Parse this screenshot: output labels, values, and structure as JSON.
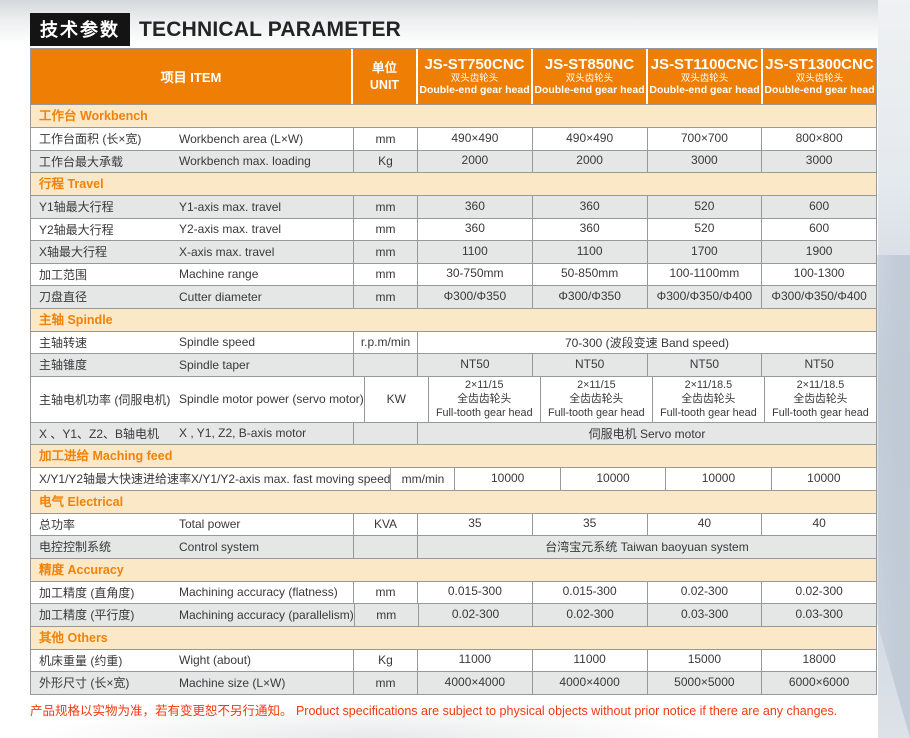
{
  "page_title": {
    "zh": "技术参数",
    "en": "TECHNICAL PARAMETER"
  },
  "colors": {
    "header_bg": "#EE7E04",
    "section_bg": "#FBE8C7",
    "section_text": "#F0820A",
    "row_alt": "#E5E6E6",
    "title_bar_bg": "#141414",
    "footer_text": "#F23A12",
    "border": "#97989A"
  },
  "table": {
    "item_header": "项目 ITEM",
    "unit_header_zh": "单位",
    "unit_header_en": "UNIT",
    "models": [
      {
        "name": "JS-ST750CNC",
        "sub_zh": "双头齿轮头",
        "sub_en": "Double-end gear head"
      },
      {
        "name": "JS-ST850NC",
        "sub_zh": "双头齿轮头",
        "sub_en": "Double-end gear head"
      },
      {
        "name": "JS-ST1100CNC",
        "sub_zh": "双头齿轮头",
        "sub_en": "Double-end gear head"
      },
      {
        "name": "JS-ST1300CNC",
        "sub_zh": "双头齿轮头",
        "sub_en": "Double-end gear head"
      }
    ],
    "sections": [
      {
        "title": "工作台 Workbench",
        "rows": [
          {
            "zh": "工作台面积 (长×宽)",
            "en": "Workbench area (L×W)",
            "unit": "mm",
            "shade": false,
            "values": [
              "490×490",
              "490×490",
              "700×700",
              "800×800"
            ]
          },
          {
            "zh": "工作台最大承载",
            "en": "Workbench max. loading",
            "unit": "Kg",
            "shade": true,
            "values": [
              "2000",
              "2000",
              "3000",
              "3000"
            ]
          }
        ]
      },
      {
        "title": "行程 Travel",
        "rows": [
          {
            "zh": "Y1轴最大行程",
            "en": "Y1-axis max. travel",
            "unit": "mm",
            "shade": true,
            "values": [
              "360",
              "360",
              "520",
              "600"
            ]
          },
          {
            "zh": "Y2轴最大行程",
            "en": "Y2-axis max. travel",
            "unit": "mm",
            "shade": false,
            "values": [
              "360",
              "360",
              "520",
              "600"
            ]
          },
          {
            "zh": "X轴最大行程",
            "en": "X-axis max. travel",
            "unit": "mm",
            "shade": true,
            "values": [
              "1100",
              "1100",
              "1700",
              "1900"
            ]
          },
          {
            "zh": "加工范围",
            "en": "Machine range",
            "unit": "mm",
            "shade": false,
            "values": [
              "30-750mm",
              "50-850mm",
              "100-1100mm",
              "100-1300"
            ]
          },
          {
            "zh": "刀盘直径",
            "en": "Cutter diameter",
            "unit": "mm",
            "shade": true,
            "values": [
              "Φ300/Φ350",
              "Φ300/Φ350",
              "Φ300/Φ350/Φ400",
              "Φ300/Φ350/Φ400"
            ]
          }
        ]
      },
      {
        "title": "主轴 Spindle",
        "rows": [
          {
            "zh": "主轴转速",
            "en": "Spindle speed",
            "unit": "r.p.m/min",
            "shade": false,
            "span": "70-300 (波段变速 Band speed)"
          },
          {
            "zh": "主轴锥度",
            "en": "Spindle taper",
            "unit": "",
            "shade": true,
            "values": [
              "NT50",
              "NT50",
              "NT50",
              "NT50"
            ]
          },
          {
            "zh": "主轴电机功率 (伺服电机)",
            "en": "Spindle motor power (servo motor)",
            "unit": "KW",
            "shade": false,
            "tall": true,
            "values": [
              [
                "2×11/15",
                "全齿齿轮头",
                "Full-tooth gear head"
              ],
              [
                "2×11/15",
                "全齿齿轮头",
                "Full-tooth gear head"
              ],
              [
                "2×11/18.5",
                "全齿齿轮头",
                "Full-tooth gear head"
              ],
              [
                "2×11/18.5",
                "全齿齿轮头",
                "Full-tooth gear head"
              ]
            ]
          },
          {
            "zh": "X 、Y1、Z2、B轴电机",
            "en": "X , Y1, Z2, B-axis motor",
            "unit": "",
            "shade": true,
            "span": "伺服电机  Servo motor"
          }
        ]
      },
      {
        "title": "加工进给 Maching feed",
        "rows": [
          {
            "zh": "X/Y1/Y2轴最大快速进给速率",
            "en": "X/Y1/Y2-axis max. fast moving speed",
            "unit": "mm/min",
            "shade": false,
            "values": [
              "10000",
              "10000",
              "10000",
              "10000"
            ]
          }
        ]
      },
      {
        "title": "电气 Electrical",
        "rows": [
          {
            "zh": "总功率",
            "en": "Total power",
            "unit": "KVA",
            "shade": false,
            "values": [
              "35",
              "35",
              "40",
              "40"
            ]
          },
          {
            "zh": "电控控制系统",
            "en": "Control system",
            "unit": "",
            "shade": true,
            "span": "台湾宝元系统  Taiwan baoyuan system"
          }
        ]
      },
      {
        "title": "精度 Accuracy",
        "rows": [
          {
            "zh": "加工精度 (直角度)",
            "en": "Machining accuracy (flatness)",
            "unit": "mm",
            "shade": false,
            "values": [
              "0.015-300",
              "0.015-300",
              "0.02-300",
              "0.02-300"
            ]
          },
          {
            "zh": "加工精度 (平行度)",
            "en": "Machining accuracy (parallelism)",
            "unit": "mm",
            "shade": true,
            "values": [
              "0.02-300",
              "0.02-300",
              "0.03-300",
              "0.03-300"
            ]
          }
        ]
      },
      {
        "title": "其他 Others",
        "rows": [
          {
            "zh": "机床重量 (约重)",
            "en": "Wight (about)",
            "unit": "Kg",
            "shade": false,
            "values": [
              "11000",
              "11000",
              "15000",
              "18000"
            ]
          },
          {
            "zh": "外形尺寸 (长×宽)",
            "en": "Machine size  (L×W)",
            "unit": "mm",
            "shade": true,
            "values": [
              "4000×4000",
              "4000×4000",
              "5000×5000",
              "6000×6000"
            ]
          }
        ]
      }
    ]
  },
  "footer": {
    "text": "产品规格以实物为准，若有变更恕不另行通知。 Product specifications are subject to physical objects without prior notice if there are any changes."
  }
}
